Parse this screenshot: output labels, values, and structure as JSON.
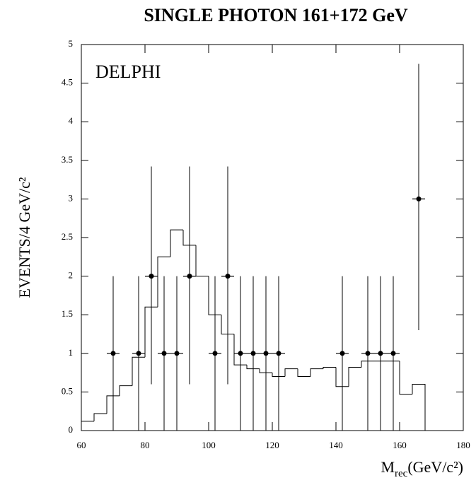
{
  "chart_data": {
    "type": "histogram",
    "title": "SINGLE PHOTON 161+172 GeV",
    "annotation": "DELPHI",
    "y_label": "EVENTS/4 GeV/c²",
    "x_label": [
      "M",
      "rec",
      "(GeV/c²)"
    ],
    "bins": [
      60,
      64,
      68,
      72,
      76,
      80,
      84,
      88,
      92,
      96,
      100,
      104,
      108,
      112,
      116,
      120,
      124,
      128,
      132,
      136,
      140,
      144,
      148,
      152,
      156,
      160,
      164,
      168
    ],
    "counts": [
      0.12,
      0.22,
      0.45,
      0.58,
      0.95,
      1.6,
      2.25,
      2.6,
      2.4,
      2.0,
      1.5,
      1.25,
      0.85,
      0.8,
      0.75,
      0.7,
      0.8,
      0.7,
      0.8,
      0.82,
      0.57,
      0.82,
      0.9,
      0.9,
      0.9,
      0.47,
      0.6
    ],
    "points": {
      "x": [
        70,
        78,
        82,
        86,
        90,
        94,
        102,
        106,
        110,
        114,
        118,
        122,
        142,
        150,
        154,
        158,
        166
      ],
      "values": [
        1,
        1,
        2,
        1,
        1,
        2,
        1,
        2,
        1,
        1,
        1,
        1,
        1,
        1,
        1,
        1,
        3
      ],
      "err_low": [
        1,
        1,
        1.4,
        1,
        1,
        1.4,
        1,
        1.4,
        1,
        1,
        1,
        1,
        1,
        1,
        1,
        1,
        1.7
      ],
      "err_high": [
        1,
        1,
        1.42,
        1,
        1,
        1.42,
        1,
        1.42,
        1,
        1,
        1,
        1,
        1,
        1,
        1,
        1,
        1.75
      ]
    },
    "xlim": [
      60,
      180
    ],
    "ylim": [
      0,
      5
    ],
    "xticks": [
      60,
      80,
      100,
      120,
      140,
      160,
      180
    ],
    "yticks": [
      0,
      0.5,
      1,
      1.5,
      2,
      2.5,
      3,
      3.5,
      4,
      4.5,
      5
    ]
  }
}
